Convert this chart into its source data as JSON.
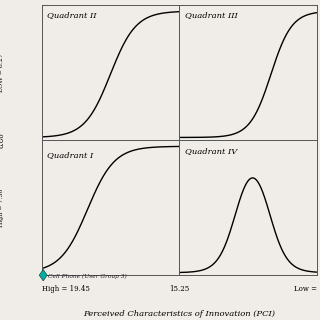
{
  "title": "Perceived Characteristics of Innovation (PCI)",
  "y_label_top": "LOW = 8.27",
  "y_label_mid": "8.80",
  "y_label_bot": "High = 7.30",
  "x_label_left": "High = 19.45",
  "x_label_mid": "15.25",
  "x_label_right": "Low =",
  "quadrant_labels": [
    "Quadrant II",
    "Quadrant III",
    "Quadrant I",
    "Quadrant IV"
  ],
  "cell_phone_label": "Cell Phone (User Group 3)",
  "marker_color": "#00b0a0",
  "background": "#f0ede8",
  "line_color": "#000000",
  "divider_color": "#555555"
}
